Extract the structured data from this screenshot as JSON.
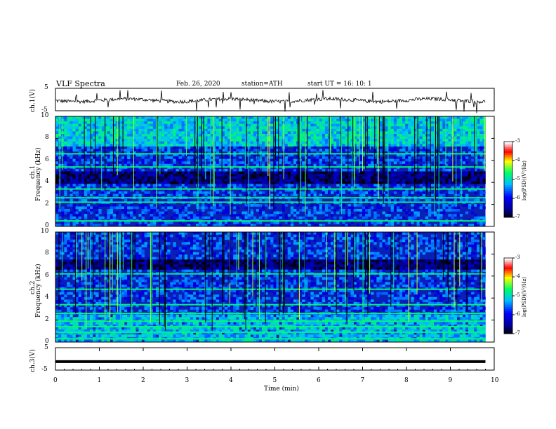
{
  "header": {
    "title": "VLF  Spectra",
    "date": "Feb. 26, 2020",
    "station": "station=ATH",
    "start": "start  UT  =   16: 10: 1"
  },
  "panels": {
    "ch1": {
      "ylabel": "ch.1(V)",
      "ticks": [
        "5",
        "-5"
      ]
    },
    "ch3": {
      "ylabel": "ch.3(V)",
      "ticks": [
        "5",
        "-5"
      ]
    },
    "spec1": {
      "ylabel_top": "ch.1",
      "ylabel": "Frequency  (kHz)"
    },
    "spec2": {
      "ylabel_top": "ch.2",
      "ylabel": "Frequency  (kHz)"
    }
  },
  "colorbar": {
    "label": "log(PSD)(V²/Hz)",
    "ticks": [
      "-3",
      "-4",
      "-5",
      "-6",
      "-7"
    ]
  },
  "xaxis": {
    "label": "Time  (min)"
  },
  "chart_data": {
    "type": "heatmap",
    "title": "VLF  Spectra",
    "xlabel": "Time  (min)",
    "ylabel": "Frequency  (kHz)",
    "xlim": [
      0,
      10
    ],
    "ylim": [
      0,
      10
    ],
    "xticks": [
      "0",
      "1",
      "2",
      "3",
      "4",
      "5",
      "6",
      "7",
      "8",
      "9",
      "10"
    ],
    "yticks": [
      "0",
      "2",
      "4",
      "6",
      "8",
      "10"
    ],
    "data_end_min": 9.8,
    "colorscale": {
      "min": -7,
      "max": -3,
      "colors": [
        "#000000",
        "#0000c8",
        "#00c0ff",
        "#00ff60",
        "#ffff00",
        "#ff0000",
        "#ffffff"
      ]
    },
    "colors": {
      "line": "#000000"
    },
    "series": [
      {
        "name": "ch.1",
        "bands_khz": [
          0.5,
          2.2,
          2.6,
          3.4,
          5.4,
          6.6
        ],
        "quiet_band_khz": [
          3.8,
          5.0
        ]
      },
      {
        "name": "ch.2",
        "bands_khz": [
          0.3,
          0.9,
          1.4,
          1.9,
          2.6,
          3.4,
          4.8,
          6.2
        ],
        "quiet_band_khz": [
          6.6,
          7.6
        ]
      },
      {
        "name": "ch.1(V)",
        "ylim": [
          -5,
          5
        ]
      },
      {
        "name": "ch.3(V)",
        "ylim": [
          -5,
          5
        ],
        "value": -1.2
      }
    ]
  }
}
